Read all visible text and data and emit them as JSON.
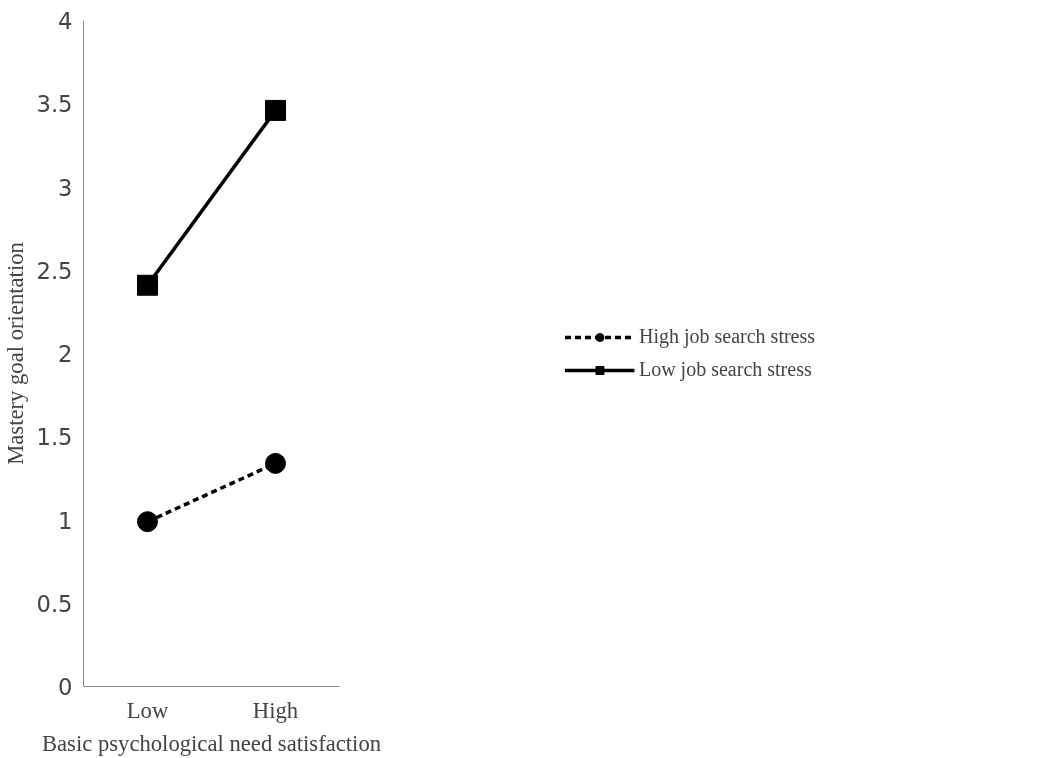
{
  "chart_data": {
    "type": "line",
    "xlabel": "Basic psychological need satisfaction",
    "ylabel": "Mastery goal orientation",
    "categories": [
      "Low",
      "High"
    ],
    "series": [
      {
        "name": "High job search stress",
        "color": "#000000",
        "values": [
          0.99,
          1.34
        ],
        "marker": "circle",
        "line_style": "dashed"
      },
      {
        "name": "Low job search stress",
        "color": "#000000",
        "values": [
          2.41,
          3.46
        ],
        "marker": "square",
        "line_style": "solid"
      }
    ],
    "ylim": [
      0,
      4
    ],
    "yticks": [
      0,
      0.5,
      1,
      1.5,
      2,
      2.5,
      3,
      3.5,
      4
    ],
    "grid": false,
    "legend": "right"
  }
}
